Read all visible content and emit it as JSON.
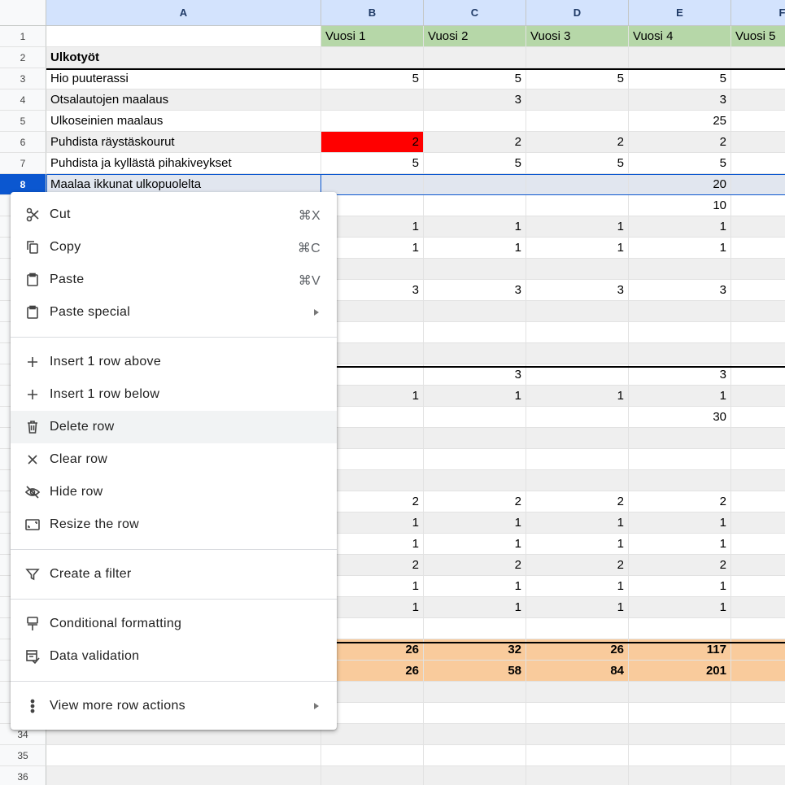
{
  "column_headers": [
    "A",
    "B",
    "C",
    "D",
    "E",
    "F"
  ],
  "row_numbers": [
    1,
    2,
    3,
    4,
    5,
    6,
    7,
    8,
    34,
    35,
    36
  ],
  "grid": [
    [
      null,
      "Vuosi 1",
      "Vuosi 2",
      "Vuosi 3",
      "Vuosi 4",
      "Vuosi 5"
    ],
    [
      "Ulkotyöt",
      null,
      null,
      null,
      null,
      null
    ],
    [
      "Hio puuterassi",
      5,
      5,
      5,
      5,
      null
    ],
    [
      "Otsalautojen maalaus",
      null,
      3,
      null,
      3,
      null
    ],
    [
      "Ulkoseinien maalaus",
      null,
      null,
      null,
      25,
      null
    ],
    [
      "Puhdista räystäskourut",
      2,
      2,
      2,
      2,
      null
    ],
    [
      "Puhdista ja kyllästä pihakiveykset",
      5,
      5,
      5,
      5,
      null
    ],
    [
      "Maalaa ikkunat ulkopuolelta",
      null,
      null,
      null,
      20,
      null
    ],
    [
      null,
      null,
      null,
      null,
      10,
      null
    ],
    [
      null,
      1,
      1,
      1,
      1,
      null
    ],
    [
      null,
      1,
      1,
      1,
      1,
      null
    ],
    [
      null,
      null,
      null,
      null,
      null,
      null
    ],
    [
      null,
      3,
      3,
      3,
      3,
      null
    ],
    [
      null,
      null,
      null,
      null,
      null,
      null
    ],
    [
      null,
      null,
      null,
      null,
      null,
      null
    ],
    [
      null,
      null,
      null,
      null,
      null,
      null
    ],
    [
      null,
      null,
      3,
      null,
      3,
      null
    ],
    [
      null,
      1,
      1,
      1,
      1,
      null
    ],
    [
      null,
      null,
      null,
      null,
      30,
      null
    ],
    [
      null,
      null,
      null,
      null,
      null,
      null
    ],
    [
      null,
      null,
      null,
      null,
      null,
      null
    ],
    [
      null,
      null,
      null,
      null,
      null,
      null
    ],
    [
      null,
      2,
      2,
      2,
      2,
      null
    ],
    [
      null,
      1,
      1,
      1,
      1,
      null
    ],
    [
      null,
      1,
      1,
      1,
      1,
      null
    ],
    [
      null,
      2,
      2,
      2,
      2,
      null
    ],
    [
      null,
      1,
      1,
      1,
      1,
      null
    ],
    [
      null,
      1,
      1,
      1,
      1,
      null
    ],
    [
      null,
      null,
      null,
      null,
      null,
      null
    ],
    [
      null,
      26,
      32,
      26,
      117,
      null
    ],
    [
      null,
      26,
      58,
      84,
      201,
      null
    ],
    [
      null,
      null,
      null,
      null,
      null,
      null
    ],
    [
      null,
      null,
      null,
      null,
      null,
      null
    ]
  ],
  "context_menu": {
    "groups": [
      [
        {
          "label": "Cut",
          "shortcut": "⌘X"
        },
        {
          "label": "Copy",
          "shortcut": "⌘C"
        },
        {
          "label": "Paste",
          "shortcut": "⌘V"
        },
        {
          "label": "Paste special",
          "submenu": true
        }
      ],
      [
        {
          "label": "Insert 1 row above"
        },
        {
          "label": "Insert 1 row below"
        },
        {
          "label": "Delete row"
        },
        {
          "label": "Clear row"
        },
        {
          "label": "Hide row"
        },
        {
          "label": "Resize the row"
        }
      ],
      [
        {
          "label": "Create a filter"
        }
      ],
      [
        {
          "label": "Conditional formatting"
        },
        {
          "label": "Data validation"
        }
      ],
      [
        {
          "label": "View more row actions",
          "submenu": true
        }
      ]
    ]
  }
}
